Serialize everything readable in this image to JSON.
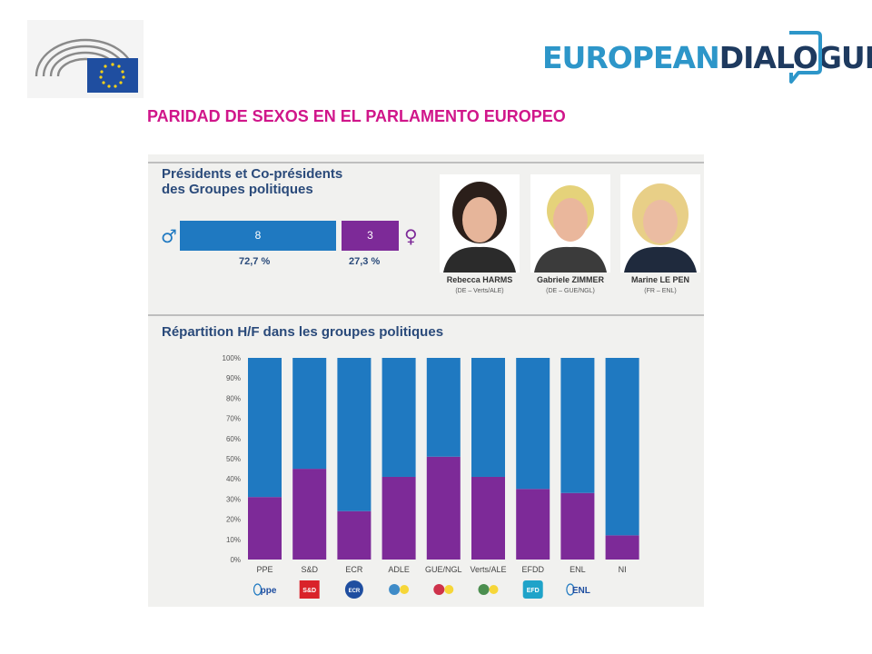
{
  "header": {
    "brand_left": "EUROPEAN",
    "brand_right": "DIALOGUES",
    "title": "PARIDAD DE SEXOS EN EL PARLAMENTO EUROPEO"
  },
  "presidents": {
    "title_line1": "Présidents et Co-présidents",
    "title_line2": "des Groupes politiques",
    "male_symbol": "♂",
    "female_symbol": "♀",
    "male_count": "8",
    "female_count": "3",
    "male_pct": "72,7 %",
    "female_pct": "27,3 %",
    "people": [
      {
        "name": "Rebecca HARMS",
        "info": "(DE – Verts/ALE)"
      },
      {
        "name": "Gabriele ZIMMER",
        "info": "(DE – GUE/NGL)"
      },
      {
        "name": "Marine LE PEN",
        "info": "(FR – ENL)"
      }
    ]
  },
  "section2": {
    "title": "Répartition H/F dans les groupes politiques"
  },
  "colors": {
    "male": "#1f79c1",
    "female": "#7d2a98",
    "title": "#d0168a",
    "brand": "#2d96c9"
  },
  "chart_data": {
    "type": "bar",
    "stacked": true,
    "categories": [
      "PPE",
      "S&D",
      "ECR",
      "ADLE",
      "GUE/NGL",
      "Verts/ALE",
      "EFDD",
      "ENL",
      "NI"
    ],
    "series": [
      {
        "values": [
          31,
          45,
          24,
          41,
          51,
          41,
          35,
          33,
          12
        ]
      },
      {
        "values": [
          69,
          55,
          76,
          59,
          49,
          59,
          65,
          67,
          88
        ]
      }
    ],
    "y_ticks": [
      "0%",
      "10%",
      "20%",
      "30%",
      "40%",
      "50%",
      "60%",
      "70%",
      "80%",
      "90%",
      "100%"
    ],
    "ylim": [
      0,
      100
    ],
    "grid": false,
    "logos": [
      "ppe",
      "S&D",
      "ECR",
      "",
      "",
      "",
      "EFD",
      "ENL",
      ""
    ]
  }
}
